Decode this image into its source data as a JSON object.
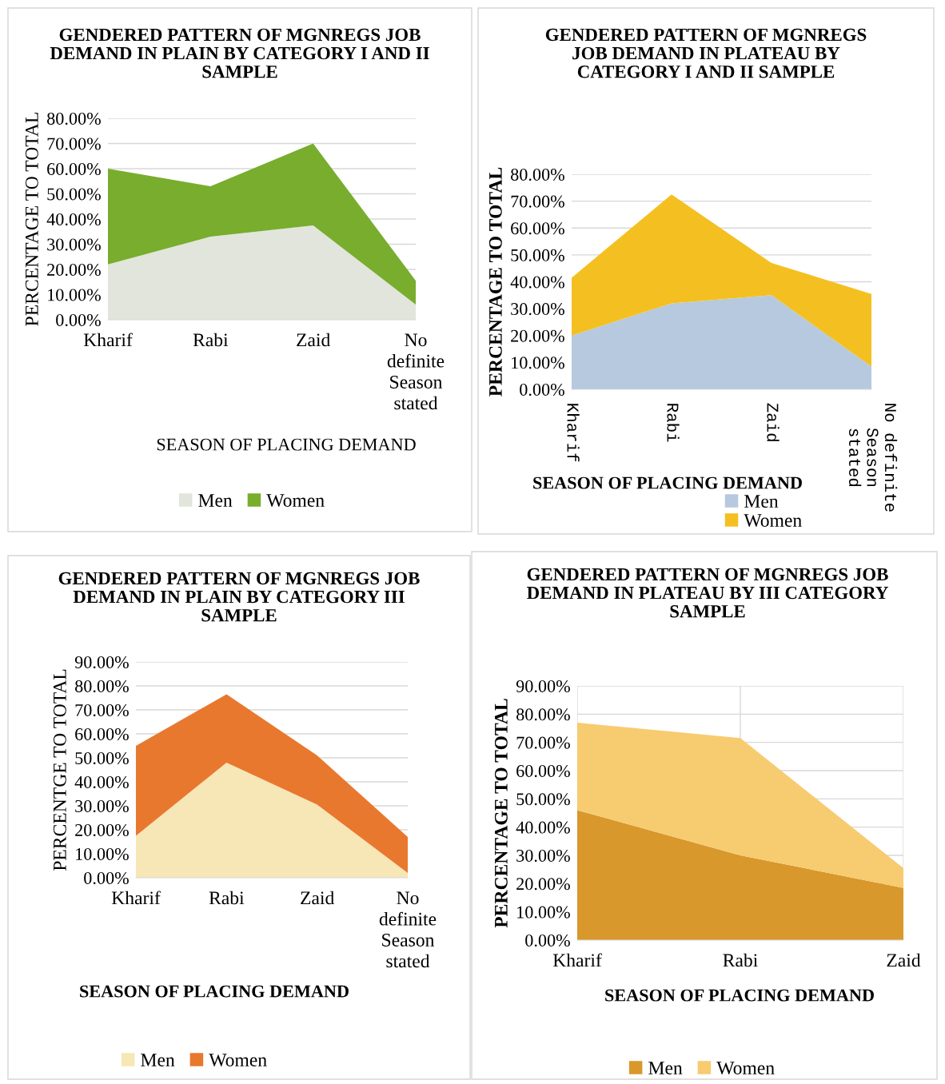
{
  "chart_data": [
    {
      "type": "area",
      "stacked": true,
      "title": "GENDERED PATTERN OF MGNREGS JOB DEMAND IN PLAIN BY CATEGORY I AND II SAMPLE",
      "xlabel": "SEASON OF PLACING DEMAND",
      "ylabel": "PERCENTAGE TO TOTAL",
      "categories": [
        "Kharif",
        "Rabi",
        "Zaid",
        "No definite Season stated"
      ],
      "series": [
        {
          "name": "Men",
          "color": "#e2e5dc",
          "values": [
            22,
            33,
            37.5,
            6
          ]
        },
        {
          "name": "Women",
          "color": "#78ad2e",
          "values": [
            38,
            20,
            32.5,
            9.5
          ]
        }
      ],
      "ylim": [
        0,
        80
      ],
      "yticks": [
        {
          "value": 0,
          "label": "0.00%"
        },
        {
          "value": 10,
          "label": "10.00%"
        },
        {
          "value": 20,
          "label": "20.00%"
        },
        {
          "value": 30,
          "label": "30.00%"
        },
        {
          "value": 40,
          "label": "40.00%"
        },
        {
          "value": 50,
          "label": "50.00%"
        },
        {
          "value": 60,
          "label": "60.00%"
        },
        {
          "value": 70,
          "label": "70.00%"
        },
        {
          "value": 80,
          "label": "80.00%"
        }
      ],
      "grid": "y",
      "legend": "bottom"
    },
    {
      "type": "area",
      "stacked": true,
      "title": "GENDERED PATTERN OF MGNREGS JOB DEMAND IN PLATEAU BY CATEGORY I AND II SAMPLE",
      "xlabel": "SEASON OF PLACING DEMAND",
      "ylabel": "PERCENTAGE TO TOTAL",
      "categories": [
        "Kharif",
        "Rabi",
        "Zaid",
        "No definite Season stated"
      ],
      "series": [
        {
          "name": "Men",
          "color": "#b6c9df",
          "values": [
            20,
            32,
            35,
            8.5
          ]
        },
        {
          "name": "Women",
          "color": "#f4c021",
          "values": [
            21.5,
            40.5,
            12,
            27
          ]
        }
      ],
      "ylim": [
        0,
        80
      ],
      "yticks": [
        {
          "value": 0,
          "label": "0.00%"
        },
        {
          "value": 10,
          "label": "10.00%"
        },
        {
          "value": 20,
          "label": "20.00%"
        },
        {
          "value": 30,
          "label": "30.00%"
        },
        {
          "value": 40,
          "label": "40.00%"
        },
        {
          "value": 50,
          "label": "50.00%"
        },
        {
          "value": 60,
          "label": "60.00%"
        },
        {
          "value": 70,
          "label": "70.00%"
        },
        {
          "value": 80,
          "label": "80.00%"
        }
      ],
      "grid": "y",
      "legend": "bottom"
    },
    {
      "type": "area",
      "stacked": true,
      "title": "GENDERED PATTERN OF MGNREGS JOB DEMAND IN PLAIN BY CATEGORY III SAMPLE",
      "xlabel": "SEASON OF PLACING DEMAND",
      "ylabel": "PERCENTGE TO TOTAL",
      "categories": [
        "Kharif",
        "Rabi",
        "Zaid",
        "No definite Season stated"
      ],
      "series": [
        {
          "name": "Men",
          "color": "#f7e6b6",
          "values": [
            17.5,
            48,
            30.5,
            2
          ]
        },
        {
          "name": "Women",
          "color": "#e8782e",
          "values": [
            37.5,
            28.5,
            20.5,
            15
          ]
        }
      ],
      "ylim": [
        0,
        90
      ],
      "yticks": [
        {
          "value": 0,
          "label": "0.00%"
        },
        {
          "value": 10,
          "label": "10.00%"
        },
        {
          "value": 20,
          "label": "20.00%"
        },
        {
          "value": 30,
          "label": "30.00%"
        },
        {
          "value": 40,
          "label": "40.00%"
        },
        {
          "value": 50,
          "label": "50.00%"
        },
        {
          "value": 60,
          "label": "60.00%"
        },
        {
          "value": 70,
          "label": "70.00%"
        },
        {
          "value": 80,
          "label": "80.00%"
        },
        {
          "value": 90,
          "label": "90.00%"
        }
      ],
      "grid": "y",
      "legend": "bottom"
    },
    {
      "type": "area",
      "stacked": true,
      "title": "GENDERED PATTERN OF MGNREGS JOB DEMAND IN PLATEAU BY III CATEGORY SAMPLE",
      "xlabel": "SEASON OF PLACING DEMAND",
      "ylabel": "PERCENTAGE TO TOTAL",
      "categories": [
        "Kharif",
        "Rabi",
        "Zaid"
      ],
      "series": [
        {
          "name": "Men",
          "color": "#d8982c",
          "values": [
            46,
            30,
            18.5
          ]
        },
        {
          "name": "Women",
          "color": "#f7cb70",
          "values": [
            31,
            41.5,
            7
          ]
        }
      ],
      "ylim": [
        0,
        90
      ],
      "yticks": [
        {
          "value": 0,
          "label": "0.00%"
        },
        {
          "value": 10,
          "label": "10.00%"
        },
        {
          "value": 20,
          "label": "20.00%"
        },
        {
          "value": 30,
          "label": "30.00%"
        },
        {
          "value": 40,
          "label": "40.00%"
        },
        {
          "value": 50,
          "label": "50.00%"
        },
        {
          "value": 60,
          "label": "60.00%"
        },
        {
          "value": 70,
          "label": "70.00%"
        },
        {
          "value": 80,
          "label": "80.00%"
        },
        {
          "value": 90,
          "label": "90.00%"
        }
      ],
      "grid": true,
      "legend": "bottom"
    }
  ]
}
